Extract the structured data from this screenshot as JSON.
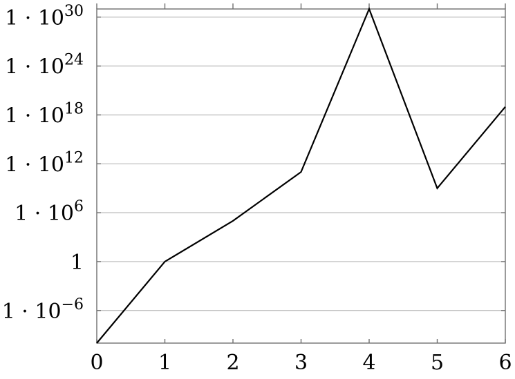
{
  "chart_data": {
    "type": "line",
    "title": "",
    "xlabel": "",
    "ylabel": "",
    "y_scale": "log",
    "grid": "horizontal major grid on",
    "legend": "none",
    "x_ticks": [
      "0",
      "1",
      "2",
      "3",
      "4",
      "5",
      "6"
    ],
    "y_ticks": [
      {
        "exp": -6,
        "mantissa": "1 · 10",
        "sup": "−6"
      },
      {
        "exp": 0,
        "mantissa": "1",
        "sup": ""
      },
      {
        "exp": 6,
        "mantissa": "1 · 10",
        "sup": "6"
      },
      {
        "exp": 12,
        "mantissa": "1 · 10",
        "sup": "12"
      },
      {
        "exp": 18,
        "mantissa": "1 · 10",
        "sup": "18"
      },
      {
        "exp": 24,
        "mantissa": "1 · 10",
        "sup": "24"
      },
      {
        "exp": 30,
        "mantissa": "1 · 10",
        "sup": "30"
      }
    ],
    "xlim": [
      0,
      6
    ],
    "ylim": [
      1e-10,
      1e+31
    ],
    "series": [
      {
        "x": [
          0,
          1,
          2,
          3,
          4,
          5,
          6
        ],
        "y": [
          1e-10,
          1,
          100000.0,
          100000000000.0,
          1e+31,
          1000000000.0,
          1e+19
        ]
      }
    ],
    "color": "#000000"
  }
}
